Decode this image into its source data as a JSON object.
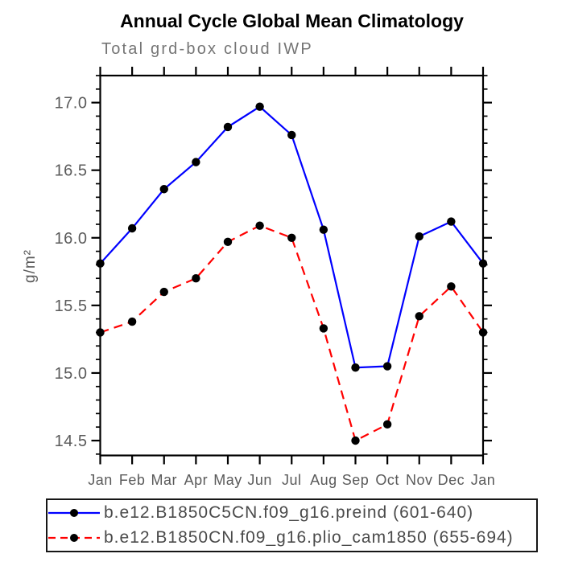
{
  "header": {
    "title": "Annual Cycle Global Mean Climatology",
    "subtitle": "Total grd-box cloud IWP"
  },
  "chart_data": {
    "type": "line",
    "title": "Annual Cycle Global Mean Climatology",
    "subtitle": "Total grd-box cloud IWP",
    "ylabel": "g/m²",
    "xlabel": "",
    "x_categories": [
      "Jan",
      "Feb",
      "Mar",
      "Apr",
      "May",
      "Jun",
      "Jul",
      "Aug",
      "Sep",
      "Oct",
      "Nov",
      "Dec",
      "Jan"
    ],
    "ylim": [
      14.39,
      17.2
    ],
    "ytick_major": [
      14.5,
      15.0,
      15.5,
      16.0,
      16.5,
      17.0
    ],
    "ytick_minor_step": 0.1,
    "grid": false,
    "legend_position": "bottom-left-boxed",
    "axis_color": "#000000",
    "label_color": "#5a5a5a",
    "series": [
      {
        "label": "b.e12.B1850C5CN.f09_g16.preind (601-640)",
        "color": "#0000ff",
        "line_style": "solid",
        "marker": "filled-circle",
        "marker_color": "#000000",
        "values": [
          15.81,
          16.07,
          16.36,
          16.56,
          16.82,
          16.97,
          16.76,
          16.06,
          15.04,
          15.05,
          16.01,
          16.12,
          15.81
        ]
      },
      {
        "label": "b.e12.B1850CN.f09_g16.plio_cam1850 (655-694)",
        "color": "#ff0000",
        "line_style": "dashed",
        "marker": "filled-circle",
        "marker_color": "#000000",
        "values": [
          15.3,
          15.38,
          15.6,
          15.7,
          15.97,
          16.09,
          16.0,
          15.33,
          14.5,
          14.62,
          15.42,
          15.64,
          15.3
        ]
      }
    ]
  }
}
